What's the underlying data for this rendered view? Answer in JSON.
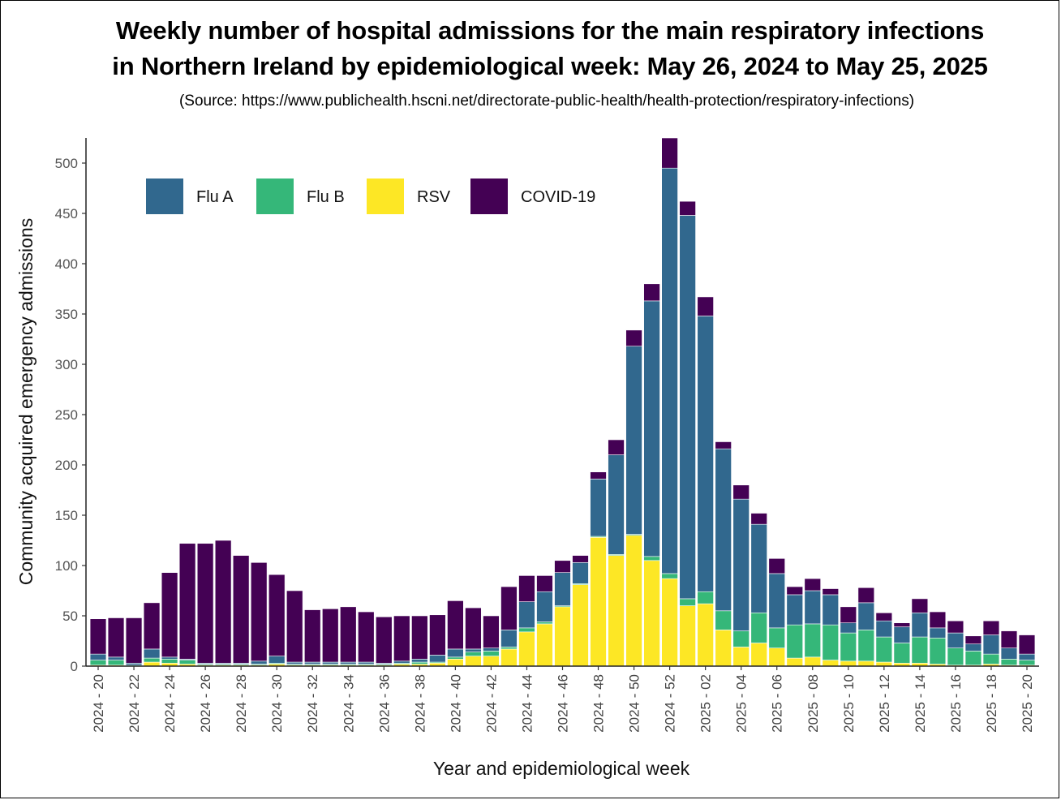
{
  "title_line1": "Weekly number of hospital admissions for the main respiratory infections",
  "title_line2": "in Northern Ireland by epidemiological week: May 26, 2024 to May 25, 2025",
  "source": "(Source: https://www.publichealth.hscni.net/directorate-public-health/health-protection/respiratory-infections)",
  "chart_data": {
    "type": "bar",
    "stacked": true,
    "xlabel": "Year and epidemiological week",
    "ylabel": "Community acquired emergency admissions",
    "ylim": [
      0,
      525
    ],
    "yticks": [
      0,
      50,
      100,
      150,
      200,
      250,
      300,
      350,
      400,
      450,
      500
    ],
    "grid": false,
    "legend_position": "top-left",
    "x_tick_labels": [
      "2024 - 20",
      "2024 - 22",
      "2024 - 24",
      "2024 - 26",
      "2024 - 28",
      "2024 - 30",
      "2024 - 32",
      "2024 - 34",
      "2024 - 36",
      "2024 - 38",
      "2024 - 40",
      "2024 - 42",
      "2024 - 44",
      "2024 - 46",
      "2024 - 48",
      "2024 - 50",
      "2024 - 52",
      "2025 - 02",
      "2025 - 04",
      "2025 - 06",
      "2025 - 08",
      "2025 - 10",
      "2025 - 12",
      "2025 - 14",
      "2025 - 16",
      "2025 - 18",
      "2025 - 20"
    ],
    "categories": [
      "2024 - 20",
      "2024 - 21",
      "2024 - 22",
      "2024 - 23",
      "2024 - 24",
      "2024 - 25",
      "2024 - 26",
      "2024 - 27",
      "2024 - 28",
      "2024 - 29",
      "2024 - 30",
      "2024 - 31",
      "2024 - 32",
      "2024 - 33",
      "2024 - 34",
      "2024 - 35",
      "2024 - 36",
      "2024 - 37",
      "2024 - 38",
      "2024 - 39",
      "2024 - 40",
      "2024 - 41",
      "2024 - 42",
      "2024 - 43",
      "2024 - 44",
      "2024 - 45",
      "2024 - 46",
      "2024 - 47",
      "2024 - 48",
      "2024 - 49",
      "2024 - 50",
      "2024 - 51",
      "2024 - 52",
      "2025 - 01",
      "2025 - 02",
      "2025 - 03",
      "2025 - 04",
      "2025 - 05",
      "2025 - 06",
      "2025 - 07",
      "2025 - 08",
      "2025 - 09",
      "2025 - 10",
      "2025 - 11",
      "2025 - 12",
      "2025 - 13",
      "2025 - 14",
      "2025 - 15",
      "2025 - 16",
      "2025 - 17",
      "2025 - 18",
      "2025 - 19",
      "2025 - 20"
    ],
    "series": [
      {
        "name": "RSV",
        "color": "#fde725",
        "values": [
          1,
          1,
          0,
          4,
          3,
          2,
          1,
          1,
          1,
          1,
          2,
          1,
          1,
          1,
          1,
          1,
          1,
          2,
          2,
          3,
          7,
          10,
          10,
          17,
          34,
          42,
          59,
          81,
          128,
          110,
          130,
          105,
          87,
          60,
          62,
          36,
          19,
          23,
          18,
          8,
          9,
          6,
          5,
          5,
          4,
          3,
          3,
          2,
          1,
          1,
          2,
          1,
          1
        ]
      },
      {
        "name": "Flu B",
        "color": "#35b779",
        "values": [
          5,
          5,
          1,
          4,
          4,
          4,
          1,
          1,
          1,
          1,
          1,
          1,
          1,
          1,
          1,
          1,
          1,
          1,
          2,
          1,
          2,
          4,
          5,
          2,
          4,
          2,
          1,
          1,
          1,
          1,
          1,
          4,
          5,
          7,
          12,
          19,
          16,
          30,
          20,
          33,
          33,
          35,
          28,
          31,
          25,
          20,
          26,
          26,
          17,
          14,
          10,
          6,
          5
        ]
      },
      {
        "name": "Flu A",
        "color": "#31688e",
        "values": [
          6,
          3,
          2,
          9,
          2,
          1,
          1,
          1,
          1,
          3,
          7,
          2,
          2,
          2,
          2,
          2,
          1,
          2,
          3,
          7,
          8,
          3,
          3,
          17,
          26,
          30,
          33,
          21,
          57,
          99,
          187,
          254,
          403,
          381,
          274,
          161,
          131,
          88,
          54,
          30,
          33,
          30,
          10,
          27,
          16,
          16,
          24,
          10,
          15,
          7,
          19,
          11,
          6
        ]
      },
      {
        "name": "COVID-19",
        "color": "#440154",
        "values": [
          35,
          39,
          45,
          46,
          84,
          115,
          119,
          122,
          107,
          98,
          81,
          71,
          52,
          53,
          55,
          50,
          46,
          45,
          43,
          40,
          48,
          41,
          32,
          43,
          26,
          16,
          12,
          7,
          7,
          15,
          16,
          17,
          30,
          14,
          19,
          7,
          14,
          11,
          15,
          8,
          12,
          6,
          16,
          15,
          8,
          4,
          14,
          16,
          12,
          8,
          14,
          17,
          19
        ]
      }
    ]
  }
}
